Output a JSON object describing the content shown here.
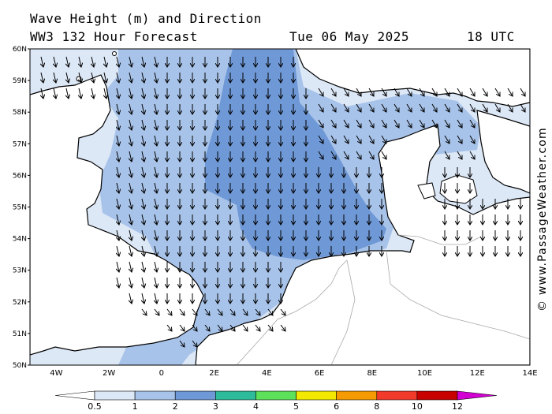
{
  "header": {
    "title": "Wave Height (m) and Direction",
    "subtitle": "WW3 132 Hour Forecast",
    "date": "Tue 06 May 2025",
    "time": "18 UTC"
  },
  "watermark": "© www.PassageWeather.com",
  "map": {
    "lat_labels": [
      "60N",
      "59N",
      "58N",
      "57N",
      "56N",
      "55N",
      "54N",
      "53N",
      "52N",
      "51N",
      "50N"
    ],
    "lon_labels": [
      "4W",
      "2W",
      "0",
      "2E",
      "4E",
      "6E",
      "8E",
      "10E",
      "12E",
      "14E"
    ],
    "lat_range": [
      50,
      60
    ],
    "lon_range": [
      -5,
      14
    ],
    "arrow_direction": "mostly north to south (waves heading south)",
    "wave_height_bands": [
      "0.5-1 m near coasts",
      "1-2 m over most of the sea",
      "2-3 m central North Sea"
    ]
  },
  "colorbar": {
    "ticks": [
      "0.5",
      "1",
      "2",
      "3",
      "4",
      "5",
      "6",
      "8",
      "10",
      "12"
    ],
    "colors": [
      "#dde8f7",
      "#a8c3e9",
      "#6f98d6",
      "#2dbb9c",
      "#5de05a",
      "#f2e800",
      "#f59a00",
      "#f23a2a",
      "#c80000",
      "#c000c0"
    ],
    "low_color": "#ffffff",
    "high_color": "#d200d2"
  },
  "colors": {
    "sea_light": "#dde8f7",
    "sea_mid": "#a8c3e9",
    "sea_high": "#6f98d6",
    "land": "#ffffff",
    "coast": "#000000",
    "border": "#a8a8a8"
  }
}
